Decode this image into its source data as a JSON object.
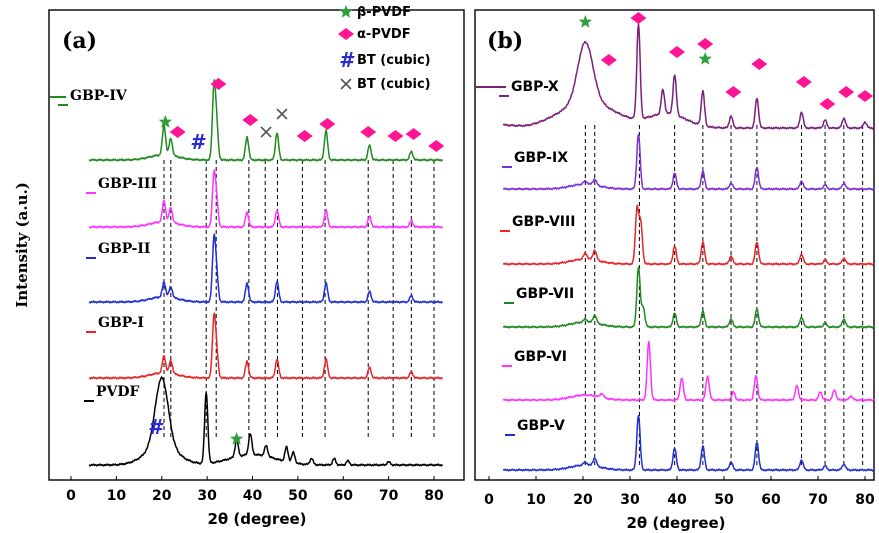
{
  "chart_data": [
    {
      "panel_label": "(a)",
      "type": "line",
      "xlabel": "2θ (degree)",
      "ylabel": "Intensity (a.u.)",
      "xlim": [
        -5,
        82
      ],
      "xticks": [
        0,
        10,
        20,
        30,
        40,
        50,
        60,
        70,
        80
      ],
      "legend": [
        {
          "marker": "star",
          "color": "#2e9e3e",
          "label": "β-PVDF"
        },
        {
          "marker": "diamond",
          "color": "#ff1493",
          "label": "α-PVDF"
        },
        {
          "marker": "hash",
          "color": "#2b2bd6",
          "label": "BT (cubic)"
        },
        {
          "marker": "cross",
          "color": "#555555",
          "label": "BT (cubic)"
        }
      ],
      "guides_2theta": [
        20.5,
        22,
        29.8,
        32,
        39.2,
        42.8,
        45.5,
        51,
        56,
        65.5,
        71,
        75,
        80
      ],
      "series": [
        {
          "name": "GBP-IV",
          "color": "#1f8a1f",
          "kind": "composite",
          "peaks": [
            [
              20.5,
              28
            ],
            [
              22,
              16
            ],
            [
              31.5,
              68
            ],
            [
              32.1,
              30
            ],
            [
              38.8,
              22
            ],
            [
              45.4,
              26
            ],
            [
              56.2,
              28
            ],
            [
              65.8,
              14
            ],
            [
              75,
              8
            ]
          ]
        },
        {
          "name": "GBP-III",
          "color": "#ff33ff",
          "kind": "composite",
          "peaks": [
            [
              20.5,
              20
            ],
            [
              22,
              14
            ],
            [
              31.5,
              48
            ],
            [
              32.1,
              22
            ],
            [
              38.8,
              14
            ],
            [
              45.4,
              16
            ],
            [
              56.2,
              16
            ],
            [
              65.8,
              10
            ],
            [
              75,
              6
            ]
          ]
        },
        {
          "name": "GBP-II",
          "color": "#1f2fd6",
          "kind": "composite",
          "peaks": [
            [
              20.5,
              14
            ],
            [
              22,
              10
            ],
            [
              31.5,
              58
            ],
            [
              32.1,
              24
            ],
            [
              38.8,
              18
            ],
            [
              45.4,
              20
            ],
            [
              56.2,
              18
            ],
            [
              65.8,
              10
            ],
            [
              75,
              6
            ]
          ]
        },
        {
          "name": "GBP-I",
          "color": "#e8262a",
          "kind": "composite",
          "peaks": [
            [
              20.5,
              16
            ],
            [
              22,
              12
            ],
            [
              31.5,
              56
            ],
            [
              32.1,
              22
            ],
            [
              38.8,
              16
            ],
            [
              45.4,
              18
            ],
            [
              56.2,
              18
            ],
            [
              65.8,
              10
            ],
            [
              75,
              6
            ]
          ]
        },
        {
          "name": "PVDF",
          "color": "#000000",
          "kind": "pvdf",
          "peaks": [
            [
              20,
              65
            ],
            [
              29.8,
              68
            ],
            [
              36.5,
              16
            ],
            [
              39.5,
              20
            ],
            [
              43,
              10
            ],
            [
              47.5,
              14
            ],
            [
              49,
              10
            ],
            [
              53,
              6
            ],
            [
              58,
              6
            ],
            [
              61,
              4
            ],
            [
              70,
              3
            ]
          ]
        }
      ],
      "annotations": [
        {
          "marker": "star",
          "color": "#2e9e3e",
          "x": 20.8,
          "series": "GBP-IV"
        },
        {
          "marker": "diamond",
          "color": "#ff1493",
          "x": 23.5,
          "series": "GBP-IV"
        },
        {
          "marker": "hash",
          "color": "#2b2bd6",
          "x": 27.8,
          "series": "GBP-IV"
        },
        {
          "marker": "diamond",
          "color": "#ff1493",
          "x": 32.5,
          "series": "GBP-IV"
        },
        {
          "marker": "diamond",
          "color": "#ff1493",
          "x": 39.5,
          "series": "GBP-IV"
        },
        {
          "marker": "cross",
          "color": "#555555",
          "x": 43,
          "series": "GBP-IV"
        },
        {
          "marker": "cross",
          "color": "#555555",
          "x": 46.5,
          "series": "GBP-IV"
        },
        {
          "marker": "diamond",
          "color": "#ff1493",
          "x": 51.5,
          "series": "GBP-IV"
        },
        {
          "marker": "diamond",
          "color": "#ff1493",
          "x": 56.5,
          "series": "GBP-IV"
        },
        {
          "marker": "diamond",
          "color": "#ff1493",
          "x": 65.5,
          "series": "GBP-IV"
        },
        {
          "marker": "diamond",
          "color": "#ff1493",
          "x": 71.5,
          "series": "GBP-IV"
        },
        {
          "marker": "diamond",
          "color": "#ff1493",
          "x": 75.5,
          "series": "GBP-IV"
        },
        {
          "marker": "diamond",
          "color": "#ff1493",
          "x": 80.5,
          "series": "GBP-IV"
        },
        {
          "marker": "hash",
          "color": "#2b2bd6",
          "x": 18.5,
          "series": "PVDF"
        },
        {
          "marker": "star",
          "color": "#2e9e3e",
          "x": 36.5,
          "series": "PVDF"
        }
      ]
    },
    {
      "panel_label": "(b)",
      "type": "line",
      "xlabel": "2θ (degree)",
      "xlim": [
        -2,
        82
      ],
      "xticks": [
        0,
        10,
        20,
        30,
        40,
        50,
        60,
        70,
        80
      ],
      "guides_2theta": [
        20.5,
        22.5,
        32,
        39.5,
        45.5,
        51.5,
        57,
        66.5,
        71.5,
        75.5,
        79.5
      ],
      "series": [
        {
          "name": "GBP-X",
          "color": "#7a1f7a",
          "kind": "gbpx",
          "peaks": [
            [
              20.5,
              60
            ],
            [
              31.8,
              95
            ],
            [
              37,
              24
            ],
            [
              39.5,
              40
            ],
            [
              45.5,
              35
            ],
            [
              51.5,
              12
            ],
            [
              57,
              30
            ],
            [
              66.5,
              16
            ],
            [
              71.5,
              8
            ],
            [
              75.5,
              10
            ],
            [
              80,
              6
            ]
          ]
        },
        {
          "name": "GBP-IX",
          "color": "#7f2fd6",
          "kind": "composite",
          "peaks": [
            [
              20.5,
              3
            ],
            [
              22.5,
              6
            ],
            [
              31.8,
              55
            ],
            [
              39.5,
              16
            ],
            [
              45.5,
              18
            ],
            [
              51.5,
              6
            ],
            [
              57,
              22
            ],
            [
              66.5,
              8
            ],
            [
              71.5,
              4
            ],
            [
              75.5,
              6
            ]
          ]
        },
        {
          "name": "GBP-VIII",
          "color": "#e8262a",
          "kind": "composite",
          "peaks": [
            [
              20.5,
              6
            ],
            [
              22.5,
              10
            ],
            [
              31.5,
              55
            ],
            [
              32.3,
              40
            ],
            [
              39.5,
              18
            ],
            [
              45.5,
              22
            ],
            [
              51.5,
              8
            ],
            [
              57,
              22
            ],
            [
              66.5,
              10
            ],
            [
              71.5,
              4
            ],
            [
              75.5,
              6
            ]
          ]
        },
        {
          "name": "GBP-VII",
          "color": "#1f8a1f",
          "kind": "composite",
          "peaks": [
            [
              20.5,
              3
            ],
            [
              22.5,
              8
            ],
            [
              31.8,
              60
            ],
            [
              32.8,
              20
            ],
            [
              39.5,
              14
            ],
            [
              45.5,
              16
            ],
            [
              51.5,
              8
            ],
            [
              57,
              18
            ],
            [
              66.5,
              10
            ],
            [
              71.5,
              4
            ],
            [
              75.5,
              8
            ]
          ]
        },
        {
          "name": "GBP-VI",
          "color": "#ff33ff",
          "kind": "composite",
          "peaks": [
            [
              24,
              4
            ],
            [
              34,
              58
            ],
            [
              41,
              22
            ],
            [
              46.5,
              24
            ],
            [
              52,
              8
            ],
            [
              56.8,
              24
            ],
            [
              65.5,
              14
            ],
            [
              70.5,
              8
            ],
            [
              73.5,
              10
            ],
            [
              77,
              4
            ]
          ]
        },
        {
          "name": "GBP-V",
          "color": "#1f2fd6",
          "kind": "composite",
          "peaks": [
            [
              20.5,
              3
            ],
            [
              22.5,
              8
            ],
            [
              31.8,
              55
            ],
            [
              39.5,
              22
            ],
            [
              45.5,
              24
            ],
            [
              51.5,
              8
            ],
            [
              57,
              28
            ],
            [
              66.5,
              10
            ],
            [
              71.5,
              4
            ],
            [
              75.5,
              6
            ]
          ]
        }
      ],
      "annotations": [
        {
          "marker": "star",
          "color": "#2e9e3e",
          "x": 20.5,
          "series": "GBP-X"
        },
        {
          "marker": "diamond",
          "color": "#ff1493",
          "x": 25.5,
          "series": "GBP-X"
        },
        {
          "marker": "diamond",
          "color": "#ff1493",
          "x": 31.8,
          "series": "GBP-X"
        },
        {
          "marker": "diamond",
          "color": "#ff1493",
          "x": 40,
          "series": "GBP-X"
        },
        {
          "marker": "diamond",
          "color": "#ff1493",
          "x": 46,
          "series": "GBP-X"
        },
        {
          "marker": "star",
          "color": "#2e9e3e",
          "x": 46,
          "series": "GBP-X"
        },
        {
          "marker": "diamond",
          "color": "#ff1493",
          "x": 52,
          "series": "GBP-X"
        },
        {
          "marker": "diamond",
          "color": "#ff1493",
          "x": 57.5,
          "series": "GBP-X"
        },
        {
          "marker": "diamond",
          "color": "#ff1493",
          "x": 67,
          "series": "GBP-X"
        },
        {
          "marker": "diamond",
          "color": "#ff1493",
          "x": 72,
          "series": "GBP-X"
        },
        {
          "marker": "diamond",
          "color": "#ff1493",
          "x": 76,
          "series": "GBP-X"
        },
        {
          "marker": "diamond",
          "color": "#ff1493",
          "x": 80,
          "series": "GBP-X"
        }
      ]
    }
  ]
}
